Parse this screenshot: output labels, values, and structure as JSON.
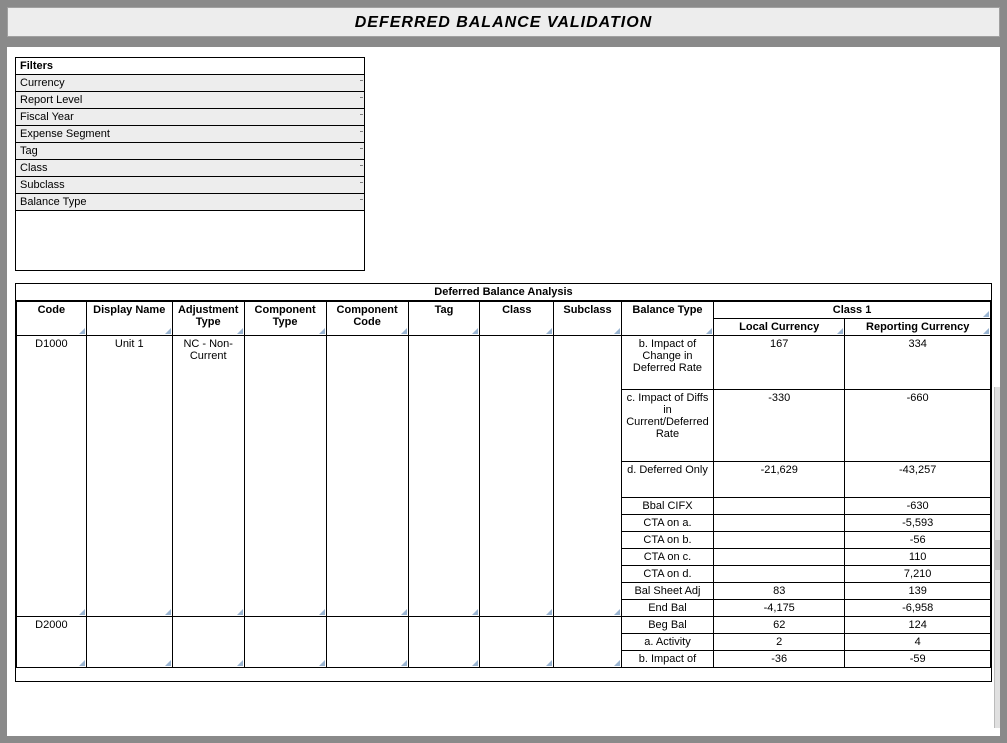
{
  "title": "DEFERRED BALANCE VALIDATION",
  "filters": {
    "header": "Filters",
    "items": [
      "Currency",
      "Report Level",
      "Fiscal Year",
      "Expense Segment",
      "Tag",
      "Class",
      "Subclass",
      "Balance Type"
    ]
  },
  "analysis": {
    "title": "Deferred Balance Analysis",
    "columns": {
      "code": "Code",
      "display_name": "Display Name",
      "adjustment_type": "Adjustment Type",
      "component_type": "Component Type",
      "component_code": "Component Code",
      "tag": "Tag",
      "class": "Class",
      "subclass": "Subclass",
      "balance_type": "Balance Type",
      "class1": "Class 1",
      "local_currency": "Local Currency",
      "reporting_currency": "Reporting Currency"
    },
    "col_widths": {
      "code": 68,
      "display_name": 84,
      "adjustment_type": 70,
      "component_type": 80,
      "component_code": 80,
      "tag": 70,
      "class": 72,
      "subclass": 66,
      "balance_type": 90,
      "local_currency": 128,
      "reporting_currency": 142
    },
    "groups": [
      {
        "code": "D1000",
        "display_name": "Unit 1",
        "adjustment_type": "NC  - Non-Current",
        "rows": [
          {
            "balance_type": "b. Impact of Change in Deferred Rate",
            "local": "167",
            "reporting": "334",
            "tall": 3
          },
          {
            "balance_type": "c. Impact of Diffs in Current/Deferred Rate",
            "local": "-330",
            "reporting": "-660",
            "tall": 4
          },
          {
            "balance_type": "d. Deferred Only",
            "local": "-21,629",
            "reporting": "-43,257",
            "tall": 2
          },
          {
            "balance_type": "Bbal CIFX",
            "local": "",
            "reporting": "-630",
            "tall": 1
          },
          {
            "balance_type": "CTA on a.",
            "local": "",
            "reporting": "-5,593",
            "tall": 1
          },
          {
            "balance_type": "CTA on b.",
            "local": "",
            "reporting": "-56",
            "tall": 1
          },
          {
            "balance_type": "CTA on c.",
            "local": "",
            "reporting": "110",
            "tall": 1
          },
          {
            "balance_type": "CTA on d.",
            "local": "",
            "reporting": "7,210",
            "tall": 1
          },
          {
            "balance_type": "Bal Sheet Adj",
            "local": "83",
            "reporting": "139",
            "tall": 1
          },
          {
            "balance_type": "End Bal",
            "local": "-4,175",
            "reporting": "-6,958",
            "tall": 1
          }
        ]
      },
      {
        "code": "D2000",
        "display_name": "",
        "adjustment_type": "",
        "rows": [
          {
            "balance_type": "Beg Bal",
            "local": "62",
            "reporting": "124",
            "tall": 1
          },
          {
            "balance_type": "a. Activity",
            "local": "2",
            "reporting": "4",
            "tall": 1
          },
          {
            "balance_type": "b. Impact of",
            "local": "-36",
            "reporting": "-59",
            "tall": 1
          }
        ]
      }
    ]
  },
  "colors": {
    "frame": "#8a8a8a",
    "panel": "#ededed",
    "corner": "#99b4d1"
  }
}
